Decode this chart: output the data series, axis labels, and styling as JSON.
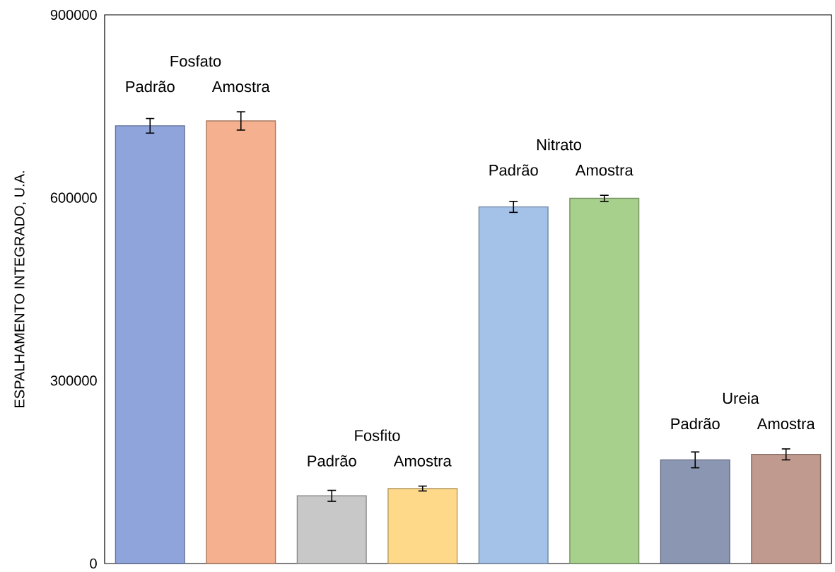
{
  "chart_data": {
    "type": "bar",
    "ylabel": "ESPALHAMENTO INTEGRADO, U.A.",
    "categories": [
      "Padrão",
      "Amostra",
      "Padrão",
      "Amostra",
      "Padrão",
      "Amostra",
      "Padrão",
      "Amostra"
    ],
    "values": [
      718000,
      726000,
      111000,
      123000,
      585000,
      599000,
      170000,
      179000
    ],
    "errors": [
      12000,
      15000,
      9000,
      4000,
      9000,
      5000,
      13000,
      9000
    ],
    "colors": [
      "#8fa4db",
      "#f5b08f",
      "#c8c8c8",
      "#ffd98a",
      "#a4c2e8",
      "#a8d08d",
      "#8b96b3",
      "#c09a8e"
    ],
    "annotations": [
      "Fosfato",
      "Fosfito",
      "Nitrato",
      "Ureia"
    ],
    "ylim": [
      0,
      900000
    ],
    "yticks": [
      0,
      300000,
      600000,
      900000
    ]
  }
}
